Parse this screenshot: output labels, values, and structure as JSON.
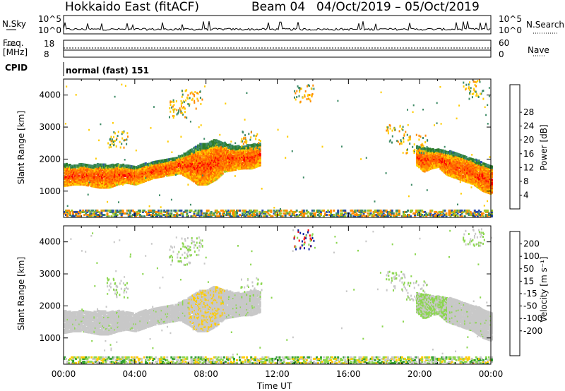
{
  "header": {
    "station": "Hokkaido East (fitACF)",
    "beam": "Beam 04",
    "dates": "04/Oct/2019 – 05/Oct/2019"
  },
  "panels": {
    "nsky": {
      "left_label": "N.Sky",
      "right_label": "N.Search",
      "left_ticks": [
        "10^5",
        "10^0"
      ],
      "right_ticks": [
        "10^5",
        "10^0"
      ]
    },
    "freq": {
      "left_label_1": "Freq.",
      "left_label_2": "[MHz]",
      "right_label": "Nave",
      "left_ticks": [
        "18",
        "8"
      ],
      "right_ticks": [
        "60",
        "0"
      ]
    },
    "cpid": {
      "label": "CPID",
      "text": "normal (fast) 151"
    }
  },
  "chart_data": [
    {
      "type": "heatmap",
      "name": "power",
      "ylabel": "Slant Range [km]",
      "ylim": [
        180,
        4500
      ],
      "yticks": [
        1000,
        2000,
        3000,
        4000
      ],
      "xlabel": "Time UT",
      "xlim": [
        "00:00",
        "24:00"
      ],
      "xtick_labels": [
        "00:00",
        "04:00",
        "08:00",
        "12:00",
        "16:00",
        "20:00",
        "00:00"
      ],
      "colorbar": {
        "label": "Power [dB]",
        "ticks": [
          "4",
          "8",
          "12",
          "16",
          "20",
          "24",
          "28"
        ],
        "range": [
          0,
          30
        ],
        "colors": [
          "#0000ff",
          "#2a4da8",
          "#3e8b66",
          "#2d7d2d",
          "#9cc628",
          "#ffcc00",
          "#ff8c00",
          "#ff5a00",
          "#ff0000"
        ]
      },
      "bands": [
        {
          "hours": [
            0,
            0.5,
            1,
            1.5,
            2,
            2.5,
            3,
            3.5,
            4,
            4.5,
            5,
            5.5,
            6,
            6.5,
            7,
            7.5,
            8,
            8.5,
            9,
            9.5,
            10,
            10.5,
            11
          ],
          "lower_km": [
            1150,
            1200,
            1200,
            1150,
            1100,
            1100,
            1200,
            1250,
            1200,
            1300,
            1400,
            1450,
            1500,
            1550,
            1400,
            1200,
            1200,
            1350,
            1600,
            1650,
            1700,
            1700,
            1800
          ],
          "upper_km": [
            1850,
            1800,
            1850,
            1800,
            1850,
            1800,
            1850,
            1800,
            1750,
            1850,
            1900,
            1950,
            2000,
            2100,
            2250,
            2450,
            2500,
            2600,
            2500,
            2400,
            2400,
            2450,
            2500
          ]
        },
        {
          "hours": [
            19.8,
            20.2,
            20.6,
            21,
            21.5,
            22,
            22.5,
            23,
            23.5,
            24
          ],
          "lower_km": [
            1800,
            1600,
            1700,
            1750,
            1500,
            1400,
            1300,
            1200,
            1000,
            900
          ],
          "upper_km": [
            2400,
            2350,
            2300,
            2300,
            2250,
            2200,
            2100,
            2000,
            1900,
            1800
          ]
        }
      ]
    },
    {
      "type": "heatmap",
      "name": "velocity",
      "ylabel": "Slant Range [km]",
      "ylim": [
        180,
        4500
      ],
      "yticks": [
        1000,
        2000,
        3000,
        4000
      ],
      "xlabel": "Time UT",
      "colorbar": {
        "label": "Velocity [m s⁻¹]",
        "ticks": [
          "200",
          "100",
          "50",
          "15",
          "-15",
          "-50",
          "-100",
          "-200"
        ],
        "colors": [
          "#0a1fa0",
          "#2a4da8",
          "#3f7f5f",
          "#33a033",
          "#8cd650",
          "#c8c8c8",
          "#ffcc00",
          "#ff9900",
          "#ff5500",
          "#ff0000"
        ]
      },
      "ground_scatter_color": "#c8c8c8"
    }
  ]
}
